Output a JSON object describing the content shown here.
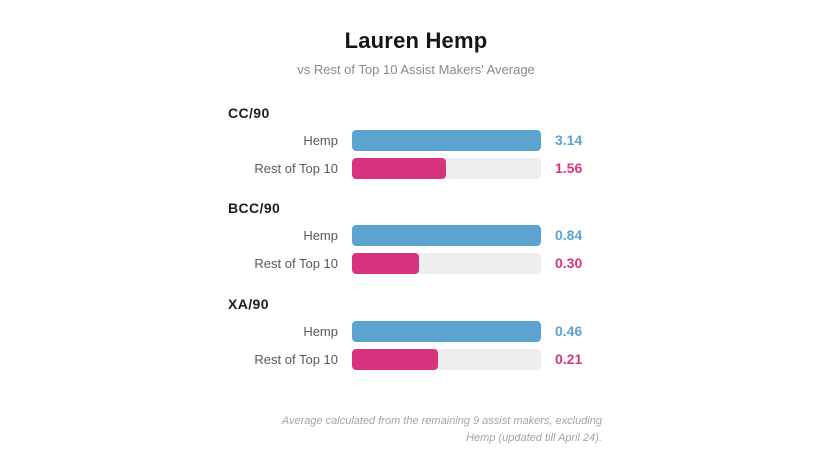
{
  "header": {
    "title": "Lauren Hemp",
    "subtitle": "vs Rest of Top 10 Assist Makers' Average"
  },
  "colors": {
    "hemp": "#5ba4d0",
    "rest": "#d8337f",
    "track": "#eeeeee"
  },
  "groups": [
    {
      "label": "CC/90",
      "rows": [
        {
          "label": "Hemp",
          "value_text": "3.14",
          "pct": 100
        },
        {
          "label": "Rest of Top 10",
          "value_text": "1.56",
          "pct": 49.7
        }
      ]
    },
    {
      "label": "BCC/90",
      "rows": [
        {
          "label": "Hemp",
          "value_text": "0.84",
          "pct": 100
        },
        {
          "label": "Rest of Top 10",
          "value_text": "0.30",
          "pct": 35.7
        }
      ]
    },
    {
      "label": "XA/90",
      "rows": [
        {
          "label": "Hemp",
          "value_text": "0.46",
          "pct": 100
        },
        {
          "label": "Rest of Top 10",
          "value_text": "0.21",
          "pct": 45.7
        }
      ]
    }
  ],
  "footnote": {
    "line1": "Average calculated from the remaining 9 assist makers, excluding",
    "line2": "Hemp (updated till April 24)."
  },
  "chart_data": {
    "type": "bar",
    "orientation": "horizontal",
    "title": "Lauren Hemp",
    "subtitle": "vs Rest of Top 10 Assist Makers' Average",
    "categories": [
      "CC/90",
      "BCC/90",
      "XA/90"
    ],
    "series": [
      {
        "name": "Hemp",
        "color": "#5ba4d0",
        "values": [
          3.14,
          0.84,
          0.46
        ]
      },
      {
        "name": "Rest of Top 10",
        "color": "#d8337f",
        "values": [
          1.56,
          0.3,
          0.21
        ]
      }
    ],
    "scaling": "each metric normalized to Hemp's value (Hemp = full bar)",
    "xlabel": "",
    "ylabel": "",
    "grid": false,
    "legend": "none (row labels inline)",
    "annotation": "Average calculated from the remaining 9 assist makers, excluding Hemp (updated till April 24)."
  }
}
